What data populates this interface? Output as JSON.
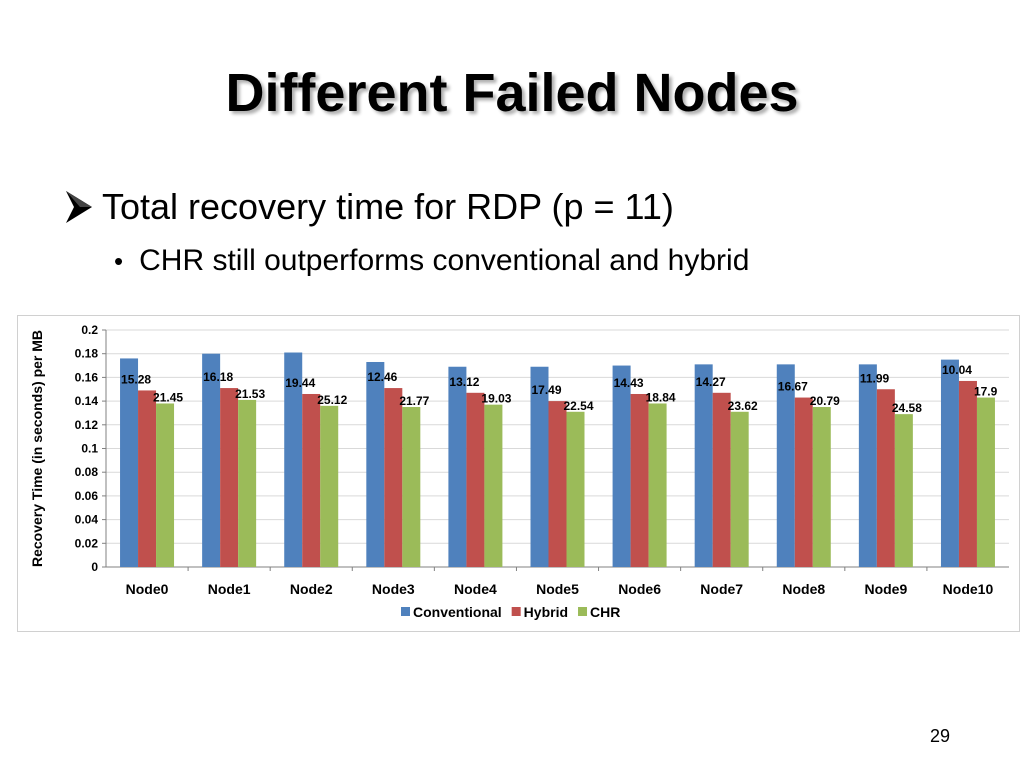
{
  "slide": {
    "title": "Different Failed Nodes",
    "bullet": "Total recovery time for RDP (p = 11)",
    "sub_bullet": "CHR still outperforms conventional and hybrid",
    "page_number": "29"
  },
  "icons": {
    "bullet": "arrow-bullet-icon",
    "sub_bullet": "dot-bullet-icon"
  },
  "chart_data": {
    "type": "bar",
    "title": "",
    "xlabel": "",
    "ylabel": "Recovery  Time (in seconds) per MB",
    "ylim": [
      0,
      0.2
    ],
    "y_ticks": [
      "0",
      "0.02",
      "0.04",
      "0.06",
      "0.08",
      "0.1",
      "0.12",
      "0.14",
      "0.16",
      "0.18",
      "0.2"
    ],
    "grid": true,
    "legend_position": "bottom",
    "categories": [
      "Node0",
      "Node1",
      "Node2",
      "Node3",
      "Node4",
      "Node5",
      "Node6",
      "Node7",
      "Node8",
      "Node9",
      "Node10"
    ],
    "series": [
      {
        "name": "Conventional",
        "color": "#4f81bd",
        "values": [
          0.176,
          0.18,
          0.181,
          0.173,
          0.169,
          0.169,
          0.17,
          0.171,
          0.171,
          0.171,
          0.175
        ]
      },
      {
        "name": "Hybrid",
        "color": "#c0504d",
        "values": [
          0.149,
          0.151,
          0.146,
          0.151,
          0.147,
          0.14,
          0.146,
          0.147,
          0.143,
          0.15,
          0.157
        ]
      },
      {
        "name": "CHR",
        "color": "#9bbb59",
        "values": [
          0.138,
          0.141,
          0.136,
          0.135,
          0.137,
          0.131,
          0.138,
          0.131,
          0.135,
          0.129,
          0.143
        ]
      }
    ],
    "annotations": [
      {
        "node": "Node0",
        "hybrid": "15.28",
        "chr": "21.45"
      },
      {
        "node": "Node1",
        "hybrid": "16.18",
        "chr": "21.53"
      },
      {
        "node": "Node2",
        "hybrid": "19.44",
        "chr": "25.12"
      },
      {
        "node": "Node3",
        "hybrid": "12.46",
        "chr": "21.77"
      },
      {
        "node": "Node4",
        "hybrid": "13.12",
        "chr": "19.03"
      },
      {
        "node": "Node5",
        "hybrid": "17.49",
        "chr": "22.54"
      },
      {
        "node": "Node6",
        "hybrid": "14.43",
        "chr": "18.84"
      },
      {
        "node": "Node7",
        "hybrid": "14.27",
        "chr": "23.62"
      },
      {
        "node": "Node8",
        "hybrid": "16.67",
        "chr": "20.79"
      },
      {
        "node": "Node9",
        "hybrid": "11.99",
        "chr": "24.58"
      },
      {
        "node": "Node10",
        "hybrid": "10.04",
        "chr": "17.9"
      }
    ]
  }
}
